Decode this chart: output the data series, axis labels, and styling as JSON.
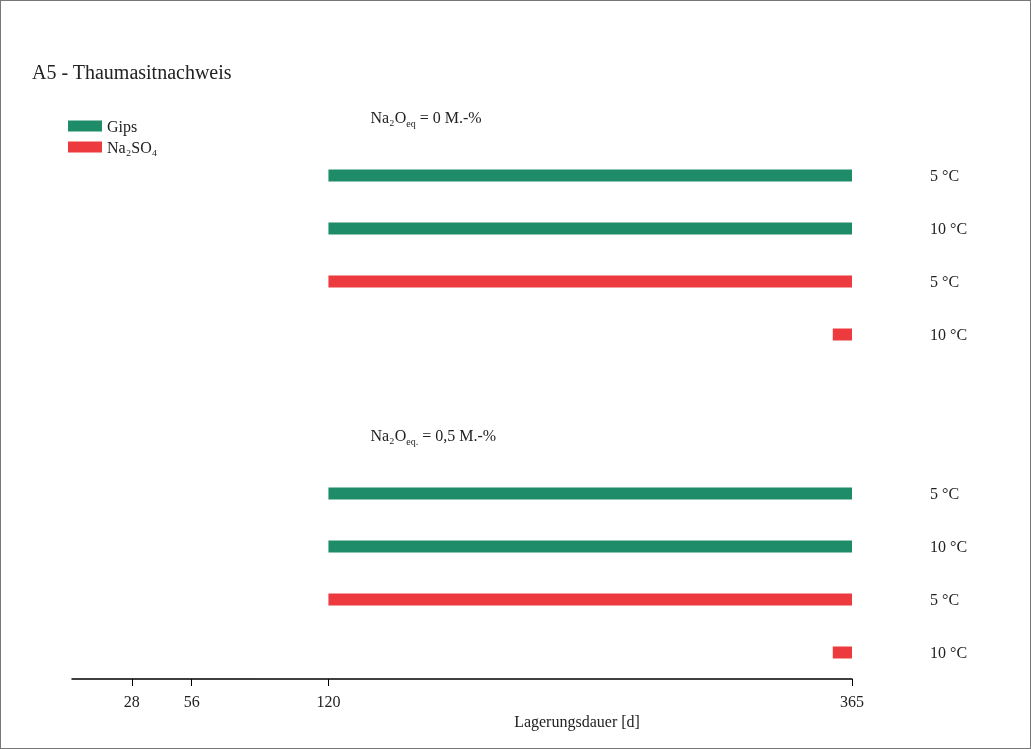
{
  "chart_data": {
    "type": "bar",
    "orientation": "horizontal",
    "title": "A5 - Thaumasitnachweis",
    "xlabel": "Lagerungsdauer [d]",
    "categories": [
      null,
      "5 °C",
      "10 °C",
      "5 °C",
      "10 °C",
      null,
      null,
      "5 °C",
      "10 °C",
      "5 °C",
      "10 °C"
    ],
    "series": [
      {
        "name": "Gips",
        "color": "#1e8c69",
        "values": [
          null,
          245,
          245,
          null,
          null,
          null,
          null,
          245,
          245,
          null,
          null
        ],
        "base": [
          null,
          120,
          120,
          null,
          null,
          null,
          null,
          120,
          120,
          null,
          null
        ]
      },
      {
        "name": "Na₂SO₄",
        "color": "#ec3a3f",
        "values": [
          null,
          null,
          null,
          245,
          9,
          null,
          null,
          null,
          null,
          245,
          9
        ],
        "base": [
          null,
          null,
          null,
          120,
          356,
          null,
          null,
          null,
          null,
          120,
          356
        ]
      }
    ],
    "xlim": [
      0,
      365
    ],
    "xticks": [
      28,
      56,
      120,
      365
    ],
    "annotations": [
      "Na₂O$_{eq}$ = 0 M.-%",
      "Na₂O$_{eq.}$ = 0,5 M.-%"
    ],
    "legend": "top left",
    "grid": false
  }
}
